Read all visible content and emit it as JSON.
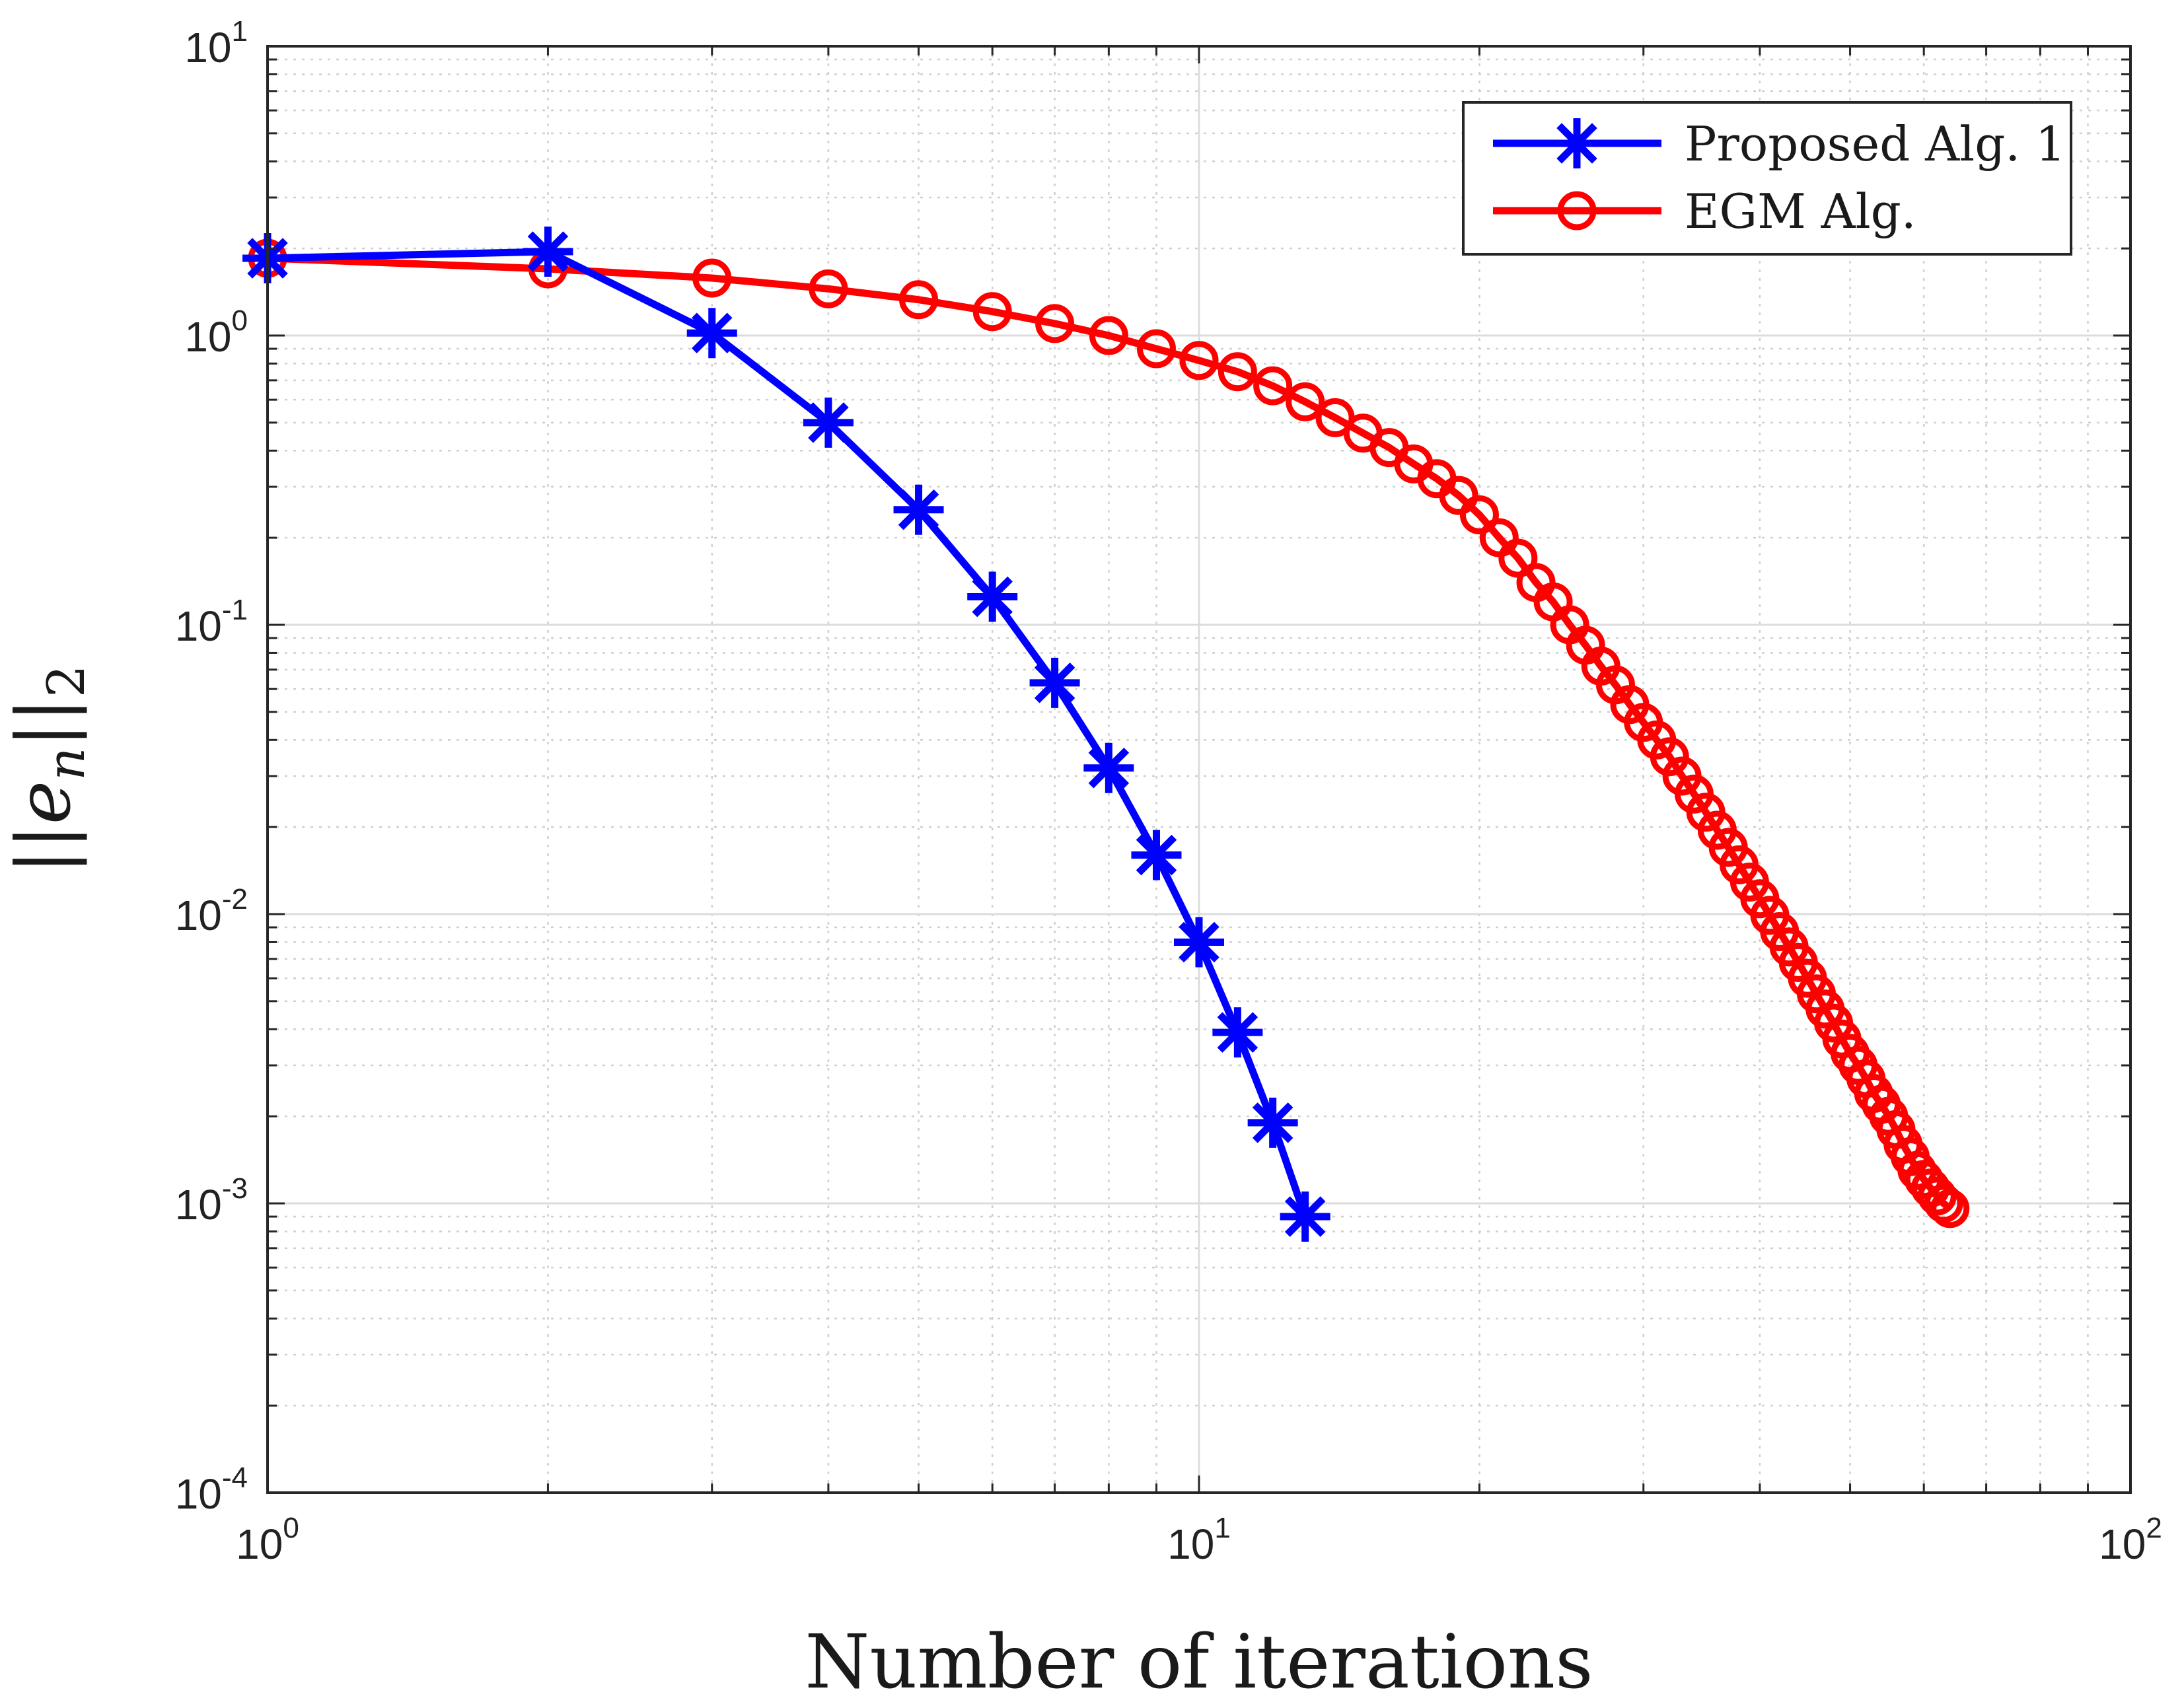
{
  "chart_data": {
    "type": "line",
    "title": "",
    "xlabel": "Number of iterations",
    "ylabel": "||e_n||_2",
    "xscale": "log",
    "yscale": "log",
    "xlim": [
      1,
      100
    ],
    "ylim": [
      0.0001,
      10
    ],
    "grid": true,
    "minor_grid": true,
    "legend_position": "top-right",
    "x_ticks": [
      {
        "value": 1,
        "base": "10",
        "exp": "0"
      },
      {
        "value": 10,
        "base": "10",
        "exp": "1"
      },
      {
        "value": 100,
        "base": "10",
        "exp": "2"
      }
    ],
    "y_ticks": [
      {
        "value": 0.0001,
        "base": "10",
        "exp": "-4"
      },
      {
        "value": 0.001,
        "base": "10",
        "exp": "-3"
      },
      {
        "value": 0.01,
        "base": "10",
        "exp": "-2"
      },
      {
        "value": 0.1,
        "base": "10",
        "exp": "-1"
      },
      {
        "value": 1,
        "base": "10",
        "exp": "0"
      },
      {
        "value": 10,
        "base": "10",
        "exp": "1"
      }
    ],
    "series": [
      {
        "name": "Proposed Alg. 1",
        "color": "#0000ff",
        "marker": "asterisk",
        "x": [
          1,
          2,
          3,
          4,
          5,
          6,
          7,
          8,
          9,
          10,
          11,
          12,
          13
        ],
        "y": [
          1.85,
          1.95,
          1.02,
          0.5,
          0.25,
          0.125,
          0.063,
          0.032,
          0.016,
          0.008,
          0.0039,
          0.0019,
          0.0009
        ]
      },
      {
        "name": "EGM Alg.",
        "color": "#ff0000",
        "marker": "circle",
        "x": [
          1,
          2,
          3,
          4,
          5,
          6,
          7,
          8,
          9,
          10,
          11,
          12,
          13,
          14,
          15,
          16,
          17,
          18,
          19,
          20,
          21,
          22,
          23,
          24,
          25,
          26,
          27,
          28,
          29,
          30,
          31,
          32,
          33,
          34,
          35,
          36,
          37,
          38,
          39,
          40,
          41,
          42,
          43,
          44,
          45,
          46,
          47,
          48,
          49,
          50,
          51,
          52,
          53,
          54,
          55,
          56,
          57,
          58,
          59,
          60,
          61,
          62,
          63,
          64
        ],
        "y": [
          1.85,
          1.7,
          1.58,
          1.45,
          1.33,
          1.21,
          1.1,
          1.0,
          0.9,
          0.82,
          0.75,
          0.67,
          0.59,
          0.52,
          0.46,
          0.41,
          0.36,
          0.32,
          0.28,
          0.24,
          0.2,
          0.17,
          0.14,
          0.12,
          0.1,
          0.085,
          0.072,
          0.062,
          0.053,
          0.046,
          0.04,
          0.035,
          0.03,
          0.026,
          0.0225,
          0.0195,
          0.017,
          0.0148,
          0.0129,
          0.0113,
          0.0099,
          0.0087,
          0.0077,
          0.0068,
          0.006,
          0.0053,
          0.0047,
          0.0042,
          0.0037,
          0.0033,
          0.003,
          0.0027,
          0.0024,
          0.0022,
          0.002,
          0.0018,
          0.0016,
          0.00145,
          0.0013,
          0.00121,
          0.00113,
          0.00106,
          0.001,
          0.00096
        ]
      }
    ]
  }
}
